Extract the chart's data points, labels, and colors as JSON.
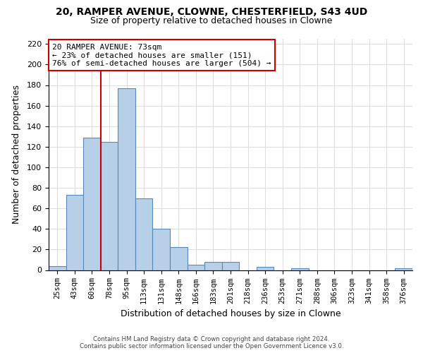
{
  "title": "20, RAMPER AVENUE, CLOWNE, CHESTERFIELD, S43 4UD",
  "subtitle": "Size of property relative to detached houses in Clowne",
  "xlabel": "Distribution of detached houses by size in Clowne",
  "ylabel": "Number of detached properties",
  "bar_labels": [
    "25sqm",
    "43sqm",
    "60sqm",
    "78sqm",
    "95sqm",
    "113sqm",
    "131sqm",
    "148sqm",
    "166sqm",
    "183sqm",
    "201sqm",
    "218sqm",
    "236sqm",
    "253sqm",
    "271sqm",
    "288sqm",
    "306sqm",
    "323sqm",
    "341sqm",
    "358sqm",
    "376sqm"
  ],
  "bar_values": [
    4,
    73,
    129,
    125,
    177,
    70,
    40,
    22,
    5,
    8,
    8,
    0,
    3,
    0,
    2,
    0,
    0,
    0,
    0,
    0,
    2
  ],
  "bar_color": "#b8cfe8",
  "bar_edge_color": "#5588bb",
  "property_line_x": 2.5,
  "property_line_color": "#cc0000",
  "annotation_title": "20 RAMPER AVENUE: 73sqm",
  "annotation_line1": "← 23% of detached houses are smaller (151)",
  "annotation_line2": "76% of semi-detached houses are larger (504) →",
  "annotation_box_color": "#ffffff",
  "annotation_box_edge": "#cc0000",
  "ylim": [
    0,
    225
  ],
  "yticks": [
    0,
    20,
    40,
    60,
    80,
    100,
    120,
    140,
    160,
    180,
    200,
    220
  ],
  "footer_line1": "Contains HM Land Registry data © Crown copyright and database right 2024.",
  "footer_line2": "Contains public sector information licensed under the Open Government Licence v3.0.",
  "background_color": "#ffffff",
  "grid_color": "#dddddd"
}
